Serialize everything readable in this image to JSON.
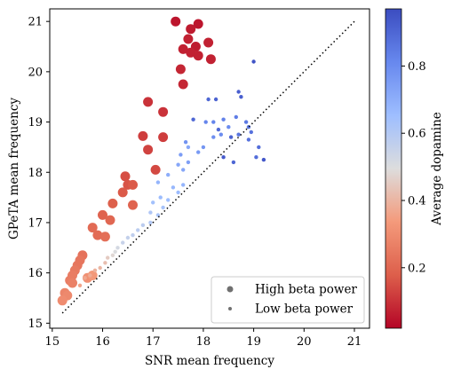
{
  "chart_data": {
    "type": "scatter",
    "xlabel": "SNR mean frequency",
    "ylabel": "GPeTA mean frequency",
    "xlim": [
      14.95,
      21.3
    ],
    "ylim": [
      14.9,
      21.25
    ],
    "xticks": [
      15,
      16,
      17,
      18,
      19,
      20,
      21
    ],
    "yticks": [
      15,
      16,
      17,
      18,
      19,
      20,
      21
    ],
    "grid": false,
    "identity_line": {
      "from": [
        15.2,
        15.2
      ],
      "to": [
        21.0,
        21.0
      ],
      "style": "dotted"
    },
    "colorbar": {
      "label": "Average dopamine",
      "range": [
        0.02,
        0.97
      ],
      "ticks": [
        0.2,
        0.4,
        0.6,
        0.8
      ],
      "tick_labels": [
        "0.2",
        "0.4",
        "0.6",
        "0.8"
      ],
      "colormap": "coolwarm_r",
      "colors": [
        "#b40426",
        "#dd5f4b",
        "#f49a7b",
        "#dddddd",
        "#9ebeff",
        "#6788ee",
        "#3b4cc0"
      ]
    },
    "legend": {
      "position": "bottom-right",
      "entries": [
        "High beta power",
        "Low beta power"
      ],
      "marker_color": "#707070"
    },
    "series": [
      {
        "group": "High beta power",
        "points": [
          [
            17.45,
            21.0,
            0.05
          ],
          [
            17.9,
            20.95,
            0.05
          ],
          [
            17.75,
            20.85,
            0.06
          ],
          [
            17.7,
            20.65,
            0.07
          ],
          [
            18.1,
            20.58,
            0.07
          ],
          [
            17.85,
            20.5,
            0.06
          ],
          [
            17.6,
            20.45,
            0.07
          ],
          [
            17.75,
            20.38,
            0.07
          ],
          [
            17.9,
            20.32,
            0.07
          ],
          [
            18.15,
            20.25,
            0.07
          ],
          [
            17.55,
            20.05,
            0.08
          ],
          [
            17.6,
            19.75,
            0.08
          ],
          [
            16.9,
            19.4,
            0.1
          ],
          [
            17.2,
            19.2,
            0.1
          ],
          [
            16.8,
            18.72,
            0.12
          ],
          [
            17.2,
            18.7,
            0.12
          ],
          [
            16.9,
            18.45,
            0.13
          ],
          [
            17.05,
            18.05,
            0.14
          ],
          [
            16.45,
            17.92,
            0.15
          ],
          [
            16.5,
            17.75,
            0.16
          ],
          [
            16.6,
            17.75,
            0.17
          ],
          [
            16.4,
            17.6,
            0.17
          ],
          [
            16.2,
            17.38,
            0.18
          ],
          [
            16.6,
            17.35,
            0.19
          ],
          [
            16.0,
            17.15,
            0.19
          ],
          [
            16.15,
            17.05,
            0.2
          ],
          [
            15.8,
            16.9,
            0.21
          ],
          [
            15.9,
            16.75,
            0.21
          ],
          [
            16.05,
            16.72,
            0.22
          ],
          [
            15.6,
            16.35,
            0.23
          ],
          [
            15.55,
            16.25,
            0.24
          ],
          [
            15.5,
            16.15,
            0.24
          ],
          [
            15.45,
            16.05,
            0.25
          ],
          [
            15.4,
            15.95,
            0.26
          ],
          [
            15.35,
            15.85,
            0.26
          ],
          [
            15.4,
            15.8,
            0.27
          ],
          [
            15.25,
            15.6,
            0.28
          ],
          [
            15.3,
            15.55,
            0.29
          ],
          [
            15.2,
            15.45,
            0.3
          ],
          [
            15.7,
            15.9,
            0.31
          ],
          [
            15.8,
            15.95,
            0.33
          ]
        ]
      },
      {
        "group": "Low beta power",
        "points": [
          [
            15.55,
            15.75,
            0.36
          ],
          [
            15.65,
            15.9,
            0.37
          ],
          [
            15.75,
            15.95,
            0.38
          ],
          [
            15.85,
            16.05,
            0.39
          ],
          [
            15.95,
            16.1,
            0.4
          ],
          [
            16.05,
            16.2,
            0.42
          ],
          [
            16.1,
            16.3,
            0.45
          ],
          [
            16.2,
            16.35,
            0.48
          ],
          [
            16.25,
            16.42,
            0.5
          ],
          [
            16.3,
            16.5,
            0.52
          ],
          [
            16.4,
            16.6,
            0.55
          ],
          [
            16.5,
            16.7,
            0.56
          ],
          [
            16.6,
            16.75,
            0.57
          ],
          [
            16.7,
            16.85,
            0.58
          ],
          [
            16.8,
            16.95,
            0.58
          ],
          [
            16.95,
            17.0,
            0.6
          ],
          [
            17.1,
            17.15,
            0.62
          ],
          [
            17.2,
            17.3,
            0.63
          ],
          [
            17.0,
            17.4,
            0.64
          ],
          [
            17.3,
            17.45,
            0.65
          ],
          [
            17.15,
            17.5,
            0.66
          ],
          [
            17.5,
            17.6,
            0.66
          ],
          [
            17.4,
            17.7,
            0.67
          ],
          [
            17.6,
            17.75,
            0.68
          ],
          [
            17.1,
            17.8,
            0.68
          ],
          [
            17.3,
            17.95,
            0.7
          ],
          [
            17.6,
            18.05,
            0.72
          ],
          [
            17.5,
            18.15,
            0.72
          ],
          [
            17.7,
            18.2,
            0.74
          ],
          [
            17.55,
            18.35,
            0.75
          ],
          [
            17.9,
            18.4,
            0.76
          ],
          [
            18.0,
            18.5,
            0.77
          ],
          [
            17.65,
            18.6,
            0.78
          ],
          [
            18.2,
            18.7,
            0.79
          ],
          [
            18.35,
            18.75,
            0.8
          ],
          [
            18.5,
            18.9,
            0.8
          ],
          [
            18.05,
            19.0,
            0.82
          ],
          [
            18.2,
            19.0,
            0.82
          ],
          [
            18.4,
            19.05,
            0.83
          ],
          [
            18.65,
            19.1,
            0.84
          ],
          [
            18.85,
            19.0,
            0.85
          ],
          [
            18.7,
            18.75,
            0.86
          ],
          [
            18.9,
            18.9,
            0.86
          ],
          [
            18.95,
            18.8,
            0.87
          ],
          [
            19.1,
            18.5,
            0.88
          ],
          [
            19.05,
            18.3,
            0.88
          ],
          [
            18.6,
            18.2,
            0.9
          ],
          [
            17.8,
            19.05,
            0.9
          ],
          [
            18.1,
            19.45,
            0.9
          ],
          [
            18.25,
            19.45,
            0.91
          ],
          [
            18.75,
            19.5,
            0.92
          ],
          [
            18.7,
            19.6,
            0.92
          ],
          [
            19.0,
            20.2,
            0.95
          ],
          [
            18.4,
            18.3,
            0.93
          ],
          [
            18.55,
            18.7,
            0.91
          ],
          [
            18.3,
            18.85,
            0.89
          ],
          [
            19.2,
            18.25,
            0.94
          ],
          [
            18.9,
            18.65,
            0.87
          ],
          [
            17.7,
            18.5,
            0.72
          ],
          [
            16.95,
            17.2,
            0.61
          ]
        ]
      }
    ]
  }
}
